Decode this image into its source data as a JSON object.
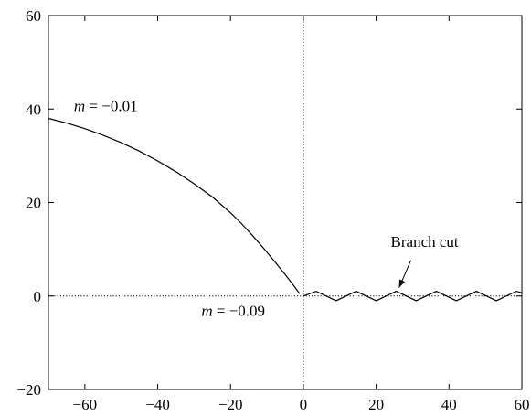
{
  "chart_data": {
    "type": "line",
    "title": "",
    "xlabel": "",
    "ylabel": "",
    "xlim": [
      -70,
      60
    ],
    "ylim": [
      -20,
      60
    ],
    "xticks": [
      -60,
      -40,
      -20,
      0,
      20,
      40,
      60
    ],
    "yticks": [
      -20,
      0,
      20,
      40,
      60
    ],
    "xtick_labels": [
      "−60",
      "−40",
      "−20",
      "0",
      "20",
      "40",
      "60"
    ],
    "ytick_labels": [
      "−20",
      "0",
      "20",
      "40",
      "60"
    ],
    "grid": false,
    "reference_lines": [
      {
        "orientation": "horizontal",
        "value": 0,
        "style": "dotted"
      },
      {
        "orientation": "vertical",
        "value": 0,
        "style": "dotted"
      }
    ],
    "series": [
      {
        "x": [
          -70,
          -65,
          -60,
          -55,
          -50,
          -45,
          -40,
          -35,
          -30,
          -25,
          -20,
          -17,
          -14,
          -11,
          -8,
          -5,
          -3,
          -1
        ],
        "y": [
          38,
          37,
          35.8,
          34.4,
          32.8,
          31,
          28.9,
          26.6,
          24,
          21.2,
          17.8,
          15.5,
          13,
          10.3,
          7.5,
          4.6,
          2.6,
          0.5
        ]
      },
      {
        "style": "zigzag",
        "x": [
          0,
          3.5,
          9,
          14.5,
          20,
          25.5,
          31,
          36.5,
          42,
          47.5,
          53,
          58.5,
          60
        ],
        "y": [
          0,
          1,
          -1,
          1,
          -1,
          1,
          -1,
          1,
          -1,
          1,
          -1,
          1,
          0.7
        ]
      }
    ],
    "annotations": [
      {
        "id": "m-top",
        "var": "m",
        "eq": " = −0.01",
        "x": -63,
        "y": 39.6
      },
      {
        "id": "m-bottom",
        "var": "m",
        "eq": " = −0.09",
        "x": -28,
        "y": -4.3
      },
      {
        "id": "branch-cut",
        "text": "Branch cut",
        "x": 24,
        "y": 10.5
      }
    ],
    "arrow": {
      "from": [
        29.5,
        7.6
      ],
      "to": [
        26.3,
        1.8
      ]
    }
  }
}
